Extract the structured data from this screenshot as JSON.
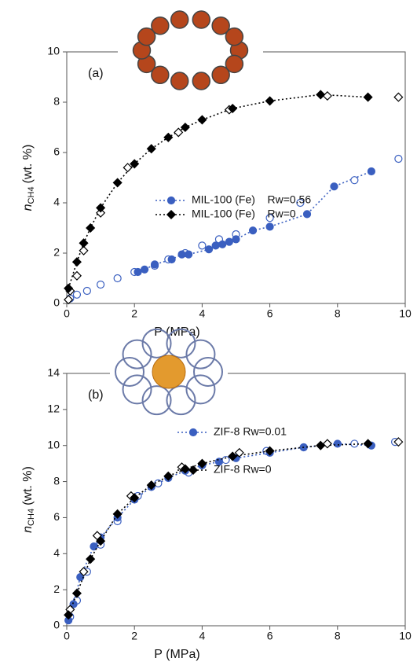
{
  "chart_data": [
    {
      "type": "line",
      "annotation": "(a)",
      "x_label": "P (MPa)",
      "y_label": {
        "symbol": "n",
        "subscript": "CH4",
        "unit": "(wt. %)"
      },
      "xlim": [
        0,
        10
      ],
      "xticks": [
        0,
        2,
        4,
        6,
        8,
        10
      ],
      "ylim": [
        0,
        10
      ],
      "yticks": [
        0,
        2,
        4,
        6,
        8,
        10
      ],
      "series": [
        {
          "name": "MIL-100 (Fe)    Rw=0.56",
          "color": "#3a5fc0",
          "marker": "circle",
          "x": [
            2.1,
            2.3,
            2.6,
            3.1,
            3.4,
            3.6,
            4.2,
            4.4,
            4.6,
            4.8,
            5.0,
            5.5,
            6.0,
            7.1,
            7.9,
            9.0
          ],
          "values": [
            1.25,
            1.35,
            1.55,
            1.75,
            1.95,
            1.95,
            2.15,
            2.3,
            2.35,
            2.45,
            2.55,
            2.9,
            3.05,
            3.55,
            4.65,
            5.25
          ],
          "open_x": [
            0.1,
            0.3,
            0.6,
            1.0,
            1.5,
            2.0,
            2.6,
            3.0,
            3.5,
            4.0,
            4.5,
            5.0,
            6.0,
            6.9,
            8.5,
            9.8
          ],
          "open_values": [
            0.2,
            0.35,
            0.5,
            0.75,
            1.0,
            1.25,
            1.5,
            1.75,
            2.0,
            2.3,
            2.55,
            2.75,
            3.4,
            4.0,
            4.9,
            5.75
          ]
        },
        {
          "name": "MIL-100 (Fe)    Rw=0",
          "color": "#000000",
          "marker": "diamond",
          "x": [
            0.05,
            0.3,
            0.5,
            0.7,
            1.0,
            1.5,
            2.0,
            2.5,
            3.0,
            3.5,
            4.0,
            4.9,
            6.0,
            7.5,
            8.9
          ],
          "values": [
            0.6,
            1.65,
            2.4,
            3.0,
            3.8,
            4.8,
            5.55,
            6.15,
            6.6,
            7.0,
            7.3,
            7.75,
            8.05,
            8.3,
            8.2
          ],
          "open_x": [
            0.05,
            0.1,
            0.3,
            0.5,
            1.0,
            1.8,
            3.3,
            4.8,
            7.7,
            9.8
          ],
          "open_values": [
            0.15,
            0.5,
            1.1,
            2.1,
            3.6,
            5.4,
            6.8,
            7.7,
            8.25,
            8.2
          ]
        }
      ]
    },
    {
      "type": "line",
      "annotation": "(b)",
      "x_label": "P (MPa)",
      "y_label": {
        "symbol": "n",
        "subscript": "CH4",
        "unit": "(wt. %)"
      },
      "xlim": [
        0,
        10
      ],
      "xticks": [
        0,
        2,
        4,
        6,
        8,
        10
      ],
      "ylim": [
        0,
        14
      ],
      "yticks": [
        0,
        2,
        4,
        6,
        8,
        10,
        12,
        14
      ],
      "series": [
        {
          "name": "ZIF-8 Rw=0.01",
          "color": "#3a5fc0",
          "marker": "circle",
          "x": [
            0.05,
            0.2,
            0.4,
            0.8,
            1.0,
            1.5,
            2.0,
            2.5,
            3.0,
            3.5,
            4.0,
            4.5,
            5.0,
            6.0,
            7.0,
            8.0,
            9.0
          ],
          "values": [
            0.3,
            1.2,
            2.7,
            4.4,
            4.9,
            6.0,
            7.0,
            7.7,
            8.2,
            8.6,
            8.9,
            9.1,
            9.3,
            9.6,
            9.9,
            10.1,
            10.0
          ],
          "open_x": [
            0.1,
            0.3,
            0.6,
            1.0,
            1.5,
            2.1,
            2.7,
            3.6,
            4.7,
            5.9,
            7.0,
            8.5,
            9.7
          ],
          "open_values": [
            0.5,
            1.4,
            3.0,
            4.5,
            5.8,
            7.2,
            7.9,
            8.5,
            9.2,
            9.7,
            9.9,
            10.1,
            10.2
          ]
        },
        {
          "name": "ZIF-8 Rw=0",
          "color": "#000000",
          "marker": "diamond",
          "x": [
            0.05,
            0.3,
            0.7,
            1.0,
            1.5,
            2.0,
            2.5,
            3.0,
            3.5,
            4.0,
            4.9,
            6.0,
            7.5,
            8.9
          ],
          "values": [
            0.6,
            1.8,
            3.7,
            4.7,
            6.2,
            7.1,
            7.8,
            8.3,
            8.7,
            9.0,
            9.4,
            9.7,
            10.0,
            10.1
          ],
          "open_x": [
            0.1,
            0.5,
            0.9,
            1.9,
            3.4,
            5.1,
            7.7,
            9.8
          ],
          "open_values": [
            0.9,
            3.0,
            5.0,
            7.2,
            8.8,
            9.6,
            10.1,
            10.2
          ]
        }
      ]
    }
  ]
}
